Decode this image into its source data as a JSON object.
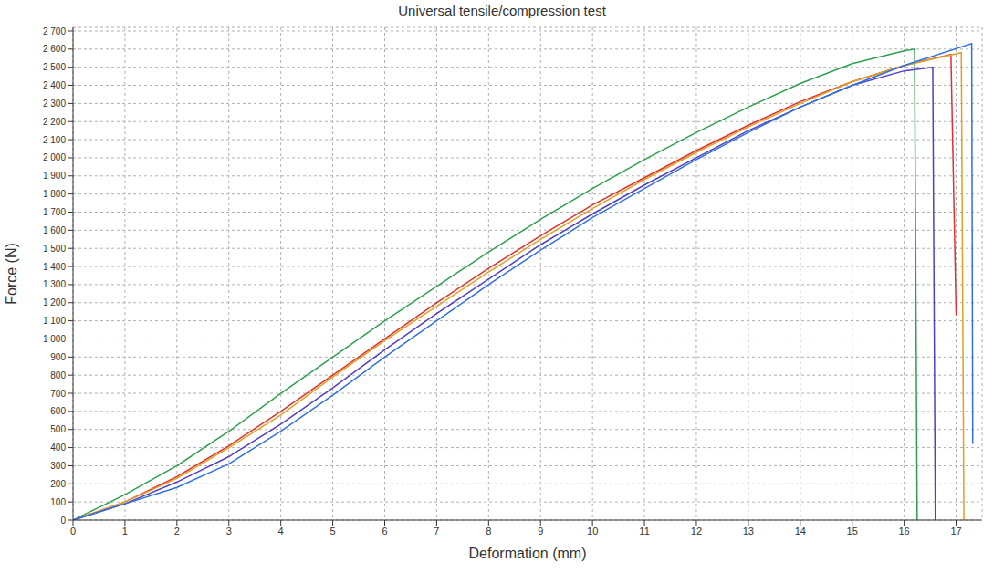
{
  "chart_data": {
    "type": "line",
    "title": "Universal tensile/compression test",
    "x_label": "Deformation (mm)",
    "y_label": "Force (N)",
    "xlim": [
      0,
      17.5
    ],
    "xticks": [
      0,
      1,
      2,
      3,
      4,
      5,
      6,
      7,
      8,
      9,
      10,
      11,
      12,
      13,
      14,
      15,
      16,
      17
    ],
    "ylim": [
      0,
      2720
    ],
    "yticks": [
      0,
      100,
      200,
      300,
      400,
      500,
      600,
      700,
      800,
      900,
      {
        "value": 1000,
        "label": "1 000"
      },
      {
        "value": 1100,
        "label": "1 100"
      },
      {
        "value": 1200,
        "label": "1 200"
      },
      {
        "value": 1300,
        "label": "1 300"
      },
      {
        "value": 1400,
        "label": "1 400"
      },
      {
        "value": 1500,
        "label": "1 500"
      },
      {
        "value": 1600,
        "label": "1 600"
      },
      {
        "value": 1700,
        "label": "1 700"
      },
      {
        "value": 1800,
        "label": "1 800"
      },
      {
        "value": 1900,
        "label": "1 900"
      },
      {
        "value": 2000,
        "label": "2 000"
      },
      {
        "value": 2100,
        "label": "2 100"
      },
      {
        "value": 2200,
        "label": "2 200"
      },
      {
        "value": 2300,
        "label": "2 300"
      },
      {
        "value": 2400,
        "label": "2 400"
      },
      {
        "value": 2500,
        "label": "2 500"
      },
      {
        "value": 2600,
        "label": "2 600"
      },
      {
        "value": 2700,
        "label": "2 700"
      }
    ],
    "grid": true,
    "marker": "none",
    "series": [
      {
        "color": "#2e9e4f",
        "x": [
          0,
          1,
          2,
          3,
          4,
          5,
          6,
          7,
          8,
          9,
          10,
          11,
          12,
          13,
          14,
          15,
          16,
          16.2,
          16.25
        ],
        "values": [
          0,
          140,
          300,
          490,
          700,
          900,
          1100,
          1290,
          1480,
          1660,
          1830,
          1990,
          2140,
          2280,
          2410,
          2520,
          2590,
          2600,
          0
        ]
      },
      {
        "color": "#e03030",
        "x": [
          0,
          1,
          2,
          3,
          4,
          5,
          6,
          7,
          8,
          9,
          10,
          11,
          12,
          13,
          14,
          15,
          16,
          16.9,
          17.0
        ],
        "values": [
          0,
          100,
          240,
          410,
          600,
          800,
          1000,
          1200,
          1390,
          1570,
          1740,
          1890,
          2040,
          2180,
          2310,
          2420,
          2510,
          2570,
          1130
        ]
      },
      {
        "color": "#e0a020",
        "x": [
          0,
          1,
          2,
          3,
          4,
          5,
          6,
          7,
          8,
          9,
          10,
          11,
          12,
          13,
          14,
          15,
          16,
          17.1,
          17.15
        ],
        "values": [
          0,
          100,
          230,
          400,
          580,
          790,
          990,
          1180,
          1370,
          1550,
          1720,
          1880,
          2030,
          2170,
          2300,
          2420,
          2510,
          2580,
          0
        ]
      },
      {
        "color": "#5040c0",
        "x": [
          0,
          1,
          2,
          3,
          4,
          5,
          6,
          7,
          8,
          9,
          10,
          11,
          12,
          13,
          14,
          15,
          16,
          16.55,
          16.6
        ],
        "values": [
          0,
          90,
          210,
          350,
          530,
          730,
          940,
          1140,
          1330,
          1520,
          1690,
          1850,
          2000,
          2150,
          2280,
          2400,
          2480,
          2500,
          0
        ]
      },
      {
        "color": "#3070e0",
        "x": [
          0,
          1,
          2,
          3,
          4,
          5,
          6,
          7,
          8,
          9,
          10,
          11,
          12,
          13,
          14,
          15,
          16,
          17.3,
          17.32
        ],
        "values": [
          0,
          90,
          180,
          310,
          490,
          690,
          900,
          1100,
          1300,
          1490,
          1670,
          1830,
          1990,
          2140,
          2280,
          2400,
          2510,
          2630,
          420
        ]
      }
    ]
  }
}
